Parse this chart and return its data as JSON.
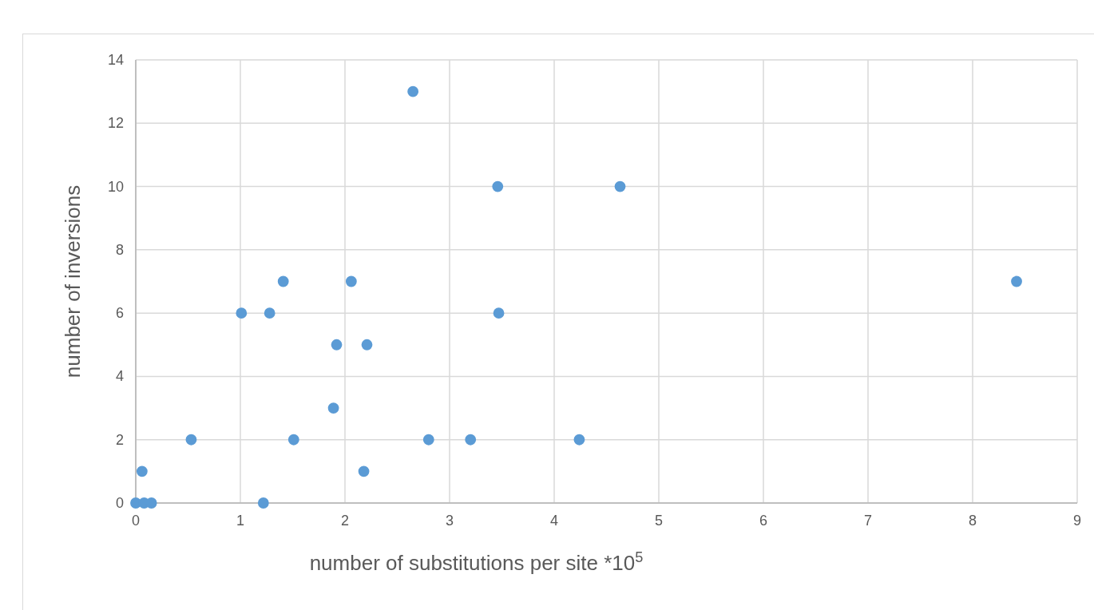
{
  "chart_data": {
    "type": "scatter",
    "xlabel": "number of substitutions per site *10$^{5}$",
    "ylabel": "number of inversions",
    "x": [
      0,
      0.08,
      0.15,
      0.06,
      1.22,
      0.53,
      1.01,
      1.28,
      1.41,
      1.51,
      1.89,
      1.92,
      2.06,
      2.18,
      2.21,
      2.65,
      2.8,
      3.2,
      3.46,
      3.47,
      4.24,
      4.63,
      8.42
    ],
    "series": [
      {
        "color": "#5b9bd5",
        "values": [
          0,
          0,
          0,
          1,
          0,
          2,
          6,
          6,
          7,
          2,
          3,
          5,
          7,
          1,
          5,
          13,
          2,
          2,
          10,
          6,
          2,
          10,
          7
        ]
      }
    ],
    "xlim": [
      0,
      9
    ],
    "xticks": [
      0,
      1,
      2,
      3,
      4,
      5,
      6,
      7,
      8,
      9
    ],
    "ylim": [
      0,
      14
    ],
    "yticks": [
      0,
      2,
      4,
      6,
      8,
      10,
      12,
      14
    ],
    "grid": true,
    "marker": "circle"
  }
}
